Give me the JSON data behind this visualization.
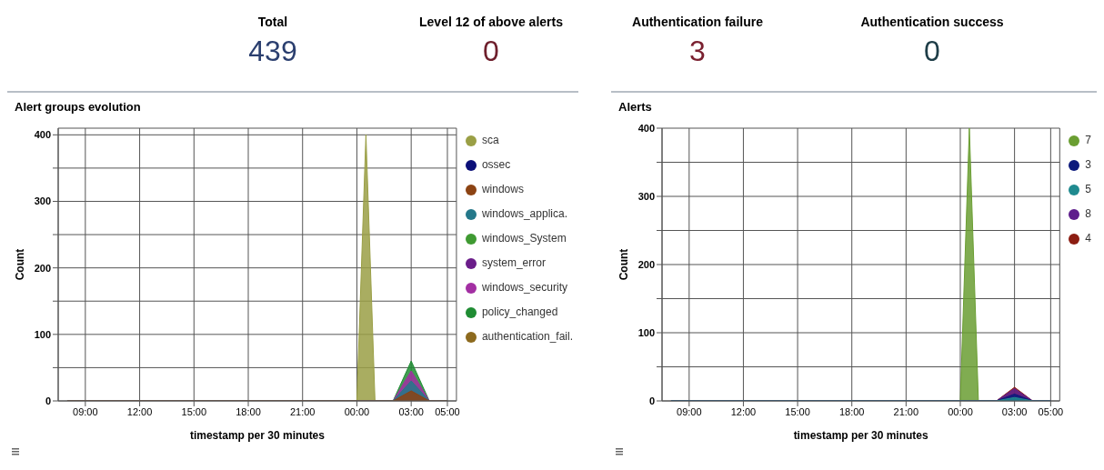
{
  "chart_data": [
    {
      "type": "other",
      "data_labels": true,
      "categories": [
        "Total",
        "Level 12 of above alerts",
        "Authentication failure",
        "Authentication success"
      ],
      "values": [
        439,
        0,
        3,
        0
      ],
      "colors": [
        "#2b3f6f",
        "#6e1f2c",
        "#7a2030",
        "#1e3d47"
      ]
    },
    {
      "type": "area",
      "title": "Alert groups evolution",
      "xlabel": "timestamp per 30 minutes",
      "ylabel": "Count",
      "grid": true,
      "legend": "top right",
      "x": [
        "--01-01T08:00",
        "--01-02T00:00",
        "--01-02T00:30",
        "--01-02T01:00",
        "--01-02T02:00",
        "--01-02T03:00",
        "--01-02T04:00",
        "--01-02T05:00"
      ],
      "xlim": [
        "--01-01T07:30",
        "--01-02T05:30"
      ],
      "xticks": [
        {
          "value": "--01-01T09:00",
          "label": "09:00"
        },
        {
          "value": "--01-01T12:00",
          "label": "12:00"
        },
        {
          "value": "--01-01T15:00",
          "label": "15:00"
        },
        {
          "value": "--01-01T18:00",
          "label": "18:00"
        },
        {
          "value": "--01-01T21:00",
          "label": "21:00"
        },
        {
          "value": "--01-02T00:00",
          "label": "00:00"
        },
        {
          "value": "--01-02T03:00",
          "label": "03:00"
        },
        {
          "value": "--01-02T05:00",
          "label": "05:00"
        }
      ],
      "ylim": [
        0,
        410
      ],
      "yticks": [
        0,
        {
          "value": 50,
          "label": null
        },
        100,
        {
          "value": 150,
          "label": null
        },
        200,
        {
          "value": 250,
          "label": null
        },
        300,
        {
          "value": 350,
          "label": null
        },
        400
      ],
      "series": [
        {
          "name": "sca",
          "color": "#9a9f45",
          "values": [
            0,
            0,
            400,
            0,
            0,
            0,
            0,
            0
          ]
        },
        {
          "name": "ossec",
          "color": "#0b0f78",
          "values": [
            null,
            null,
            null,
            null,
            null,
            null,
            null,
            null
          ]
        },
        {
          "name": "windows",
          "color": "#8c4313",
          "values": [
            0,
            0,
            0,
            0,
            0,
            15,
            0,
            0
          ]
        },
        {
          "name": "windows_applica.",
          "color": "#24788a",
          "values": [
            0,
            0,
            0,
            0,
            0,
            30,
            0,
            0
          ]
        },
        {
          "name": "windows_System",
          "color": "#3f9a32",
          "values": [
            null,
            null,
            null,
            null,
            null,
            null,
            null,
            null
          ]
        },
        {
          "name": "system_error",
          "color": "#6b1d8a",
          "values": [
            null,
            null,
            null,
            null,
            null,
            null,
            null,
            null
          ]
        },
        {
          "name": "windows_security",
          "color": "#a32fa3",
          "values": [
            0,
            0,
            0,
            0,
            0,
            45,
            0,
            0
          ]
        },
        {
          "name": "policy_changed",
          "color": "#1f8c33",
          "values": [
            0,
            0,
            0,
            0,
            0,
            60,
            0,
            0
          ]
        },
        {
          "name": "authentication_fail.",
          "color": "#8d6a1e",
          "values": [
            null,
            null,
            null,
            null,
            null,
            null,
            null,
            null
          ]
        }
      ]
    },
    {
      "type": "area",
      "title": "Alerts",
      "xlabel": "timestamp per 30 minutes",
      "ylabel": "Count",
      "grid": true,
      "legend": "top right",
      "x": [
        "--01-01T08:00",
        "--01-02T00:00",
        "--01-02T00:30",
        "--01-02T01:00",
        "--01-02T02:00",
        "--01-02T03:00",
        "--01-02T04:00",
        "--01-02T05:00"
      ],
      "xlim": [
        "--01-01T07:30",
        "--01-02T05:30"
      ],
      "xticks": [
        {
          "value": "--01-01T09:00",
          "label": "09:00"
        },
        {
          "value": "--01-01T12:00",
          "label": "12:00"
        },
        {
          "value": "--01-01T15:00",
          "label": "15:00"
        },
        {
          "value": "--01-01T18:00",
          "label": "18:00"
        },
        {
          "value": "--01-01T21:00",
          "label": "21:00"
        },
        {
          "value": "--01-02T00:00",
          "label": "00:00"
        },
        {
          "value": "--01-02T03:00",
          "label": "03:00"
        },
        {
          "value": "--01-02T05:00",
          "label": "05:00"
        }
      ],
      "ylim": [
        0,
        400
      ],
      "yticks": [
        0,
        {
          "value": 50,
          "label": null
        },
        100,
        {
          "value": 150,
          "label": null
        },
        200,
        {
          "value": 250,
          "label": null
        },
        300,
        {
          "value": 350,
          "label": null
        },
        400
      ],
      "series": [
        {
          "name": "7",
          "color": "#6a9e32",
          "values": [
            0,
            0,
            400,
            0,
            0,
            0,
            0,
            0
          ]
        },
        {
          "name": "3",
          "color": "#0d1a7c",
          "values": [
            0,
            0,
            0,
            0,
            0,
            10,
            0,
            0
          ]
        },
        {
          "name": "5",
          "color": "#1f8a8f",
          "values": [
            0,
            0,
            0,
            0,
            0,
            5,
            0,
            0
          ]
        },
        {
          "name": "8",
          "color": "#5e1d8c",
          "values": [
            0,
            0,
            0,
            0,
            0,
            18,
            0,
            0
          ]
        },
        {
          "name": "4",
          "color": "#8c1d12",
          "values": [
            0,
            0,
            0,
            0,
            0,
            20,
            0,
            0
          ]
        }
      ]
    }
  ]
}
